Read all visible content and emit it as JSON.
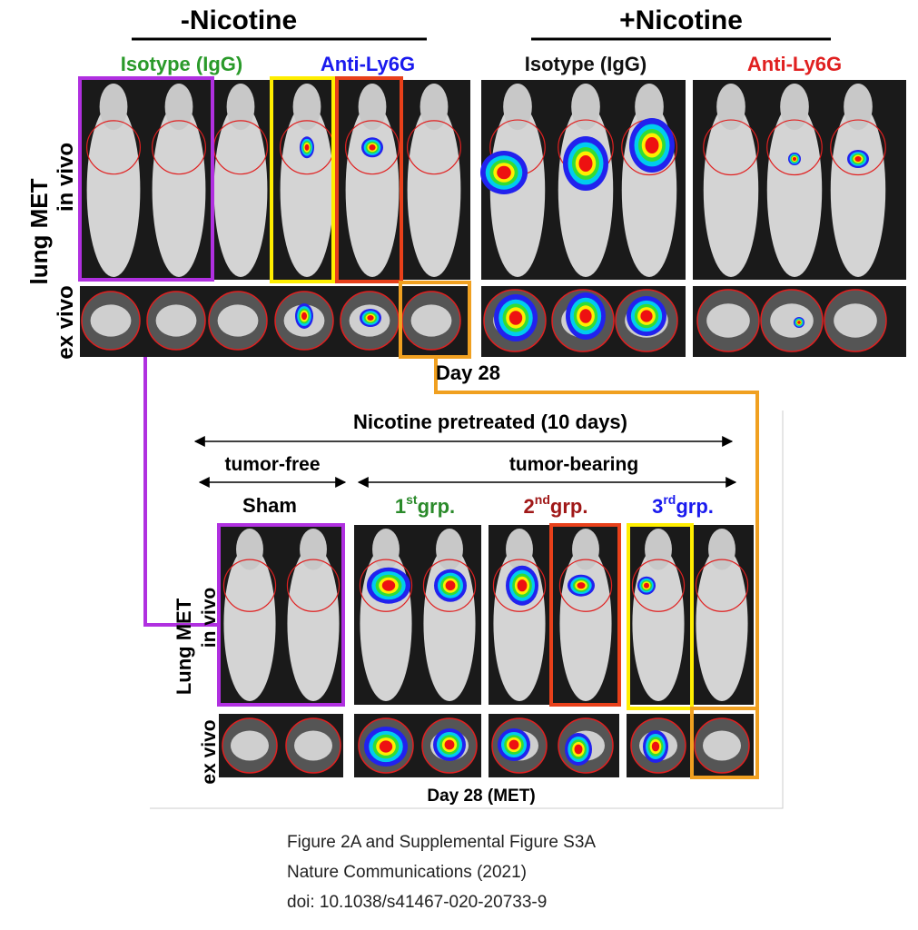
{
  "top": {
    "left_heading": "-Nicotine",
    "right_heading": "+Nicotine",
    "column_labels": [
      "Isotype (IgG)",
      "Anti-Ly6G",
      "Isotype (IgG)",
      "Anti-Ly6G"
    ],
    "row_label_main": "lung MET",
    "row_label_in": "in vivo",
    "row_label_ex": "ex vivo",
    "day": "Day 28"
  },
  "bottom": {
    "heading": "Nicotine pretreated (10 days)",
    "tumor_free": "tumor-free",
    "tumor_bearing": "tumor-bearing",
    "sham": "Sham",
    "groups": [
      {
        "num": "1",
        "sup": "st",
        "text": "grp."
      },
      {
        "num": "2",
        "sup": "nd",
        "text": "grp."
      },
      {
        "num": "3",
        "sup": "rd",
        "text": "grp."
      }
    ],
    "row_label_main": "Lung MET",
    "row_label_in": "in vivo",
    "row_label_ex": "ex vivo",
    "day": "Day 28 (MET)"
  },
  "caption": [
    "Figure 2A and Supplemental Figure S3A",
    "Nature Communications (2021)",
    "doi: 10.1038/s41467-020-20733-9"
  ]
}
